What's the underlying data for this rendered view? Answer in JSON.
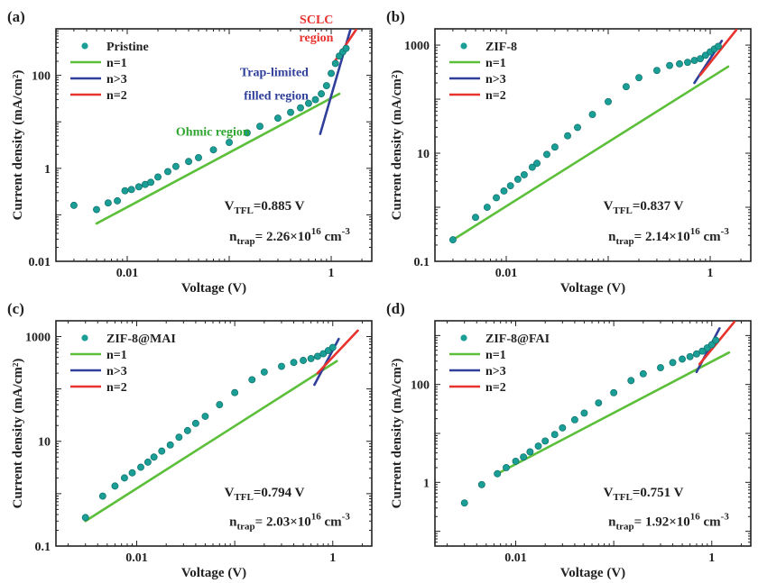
{
  "figure": {
    "panel_count": 4
  },
  "chart_data": [
    {
      "type": "scatter",
      "panel": "(a)",
      "xlabel": "Voltage (V)",
      "ylabel": "Current density (mA/cm²)",
      "xscale": "log",
      "yscale": "log",
      "xlim": [
        0.002,
        2.5
      ],
      "ylim": [
        0.01,
        1000
      ],
      "xticks": [
        {
          "v": 0.01,
          "label": "0.01"
        },
        {
          "v": 1,
          "label": "1"
        }
      ],
      "yticks": [
        {
          "v": 0.01,
          "label": "0.01"
        },
        {
          "v": 1,
          "label": "1"
        },
        {
          "v": 100,
          "label": "100"
        }
      ],
      "legend_position": "top-left",
      "series": [
        {
          "name": "Pristine",
          "kind": "points",
          "color": "#1a9e96",
          "x": [
            0.003,
            0.005,
            0.0065,
            0.008,
            0.0095,
            0.011,
            0.013,
            0.015,
            0.017,
            0.02,
            0.025,
            0.03,
            0.04,
            0.05,
            0.07,
            0.1,
            0.15,
            0.2,
            0.3,
            0.4,
            0.5,
            0.6,
            0.7,
            0.8,
            0.9,
            1.0,
            1.1,
            1.2,
            1.3,
            1.4
          ],
          "y": [
            0.16,
            0.13,
            0.18,
            0.2,
            0.33,
            0.35,
            0.4,
            0.45,
            0.5,
            0.65,
            0.85,
            1.1,
            1.4,
            1.7,
            2.5,
            3.6,
            5.8,
            8,
            12,
            16,
            20,
            25,
            30,
            40,
            60,
            110,
            180,
            260,
            320,
            380
          ]
        },
        {
          "name": "n=1",
          "kind": "line",
          "color": "#5cbf3a",
          "x": [
            0.005,
            1.2
          ],
          "y": [
            0.065,
            40
          ]
        },
        {
          "name": "n>3",
          "kind": "line",
          "color": "#2f3f9a",
          "x": [
            0.78,
            1.55
          ],
          "y": [
            5.5,
            1500
          ]
        },
        {
          "name": "n=2",
          "kind": "line",
          "color": "#e8322e",
          "x": [
            1.05,
            1.75
          ],
          "y": [
            180,
            950
          ]
        }
      ],
      "annotations": [
        {
          "text": "Ohmic region",
          "color": "#30a530",
          "x": 0.03,
          "y": 5
        },
        {
          "text": "Trap-limited",
          "color": "#2f3f9a",
          "x": 0.6,
          "y": 30,
          "anchor": "end",
          "dy": -26
        },
        {
          "text": "filled region",
          "color": "#2f3f9a",
          "x": 0.6,
          "y": 30,
          "anchor": "end",
          "dy": 0
        },
        {
          "text": "SCLC",
          "color": "#e8322e",
          "x": 1.05,
          "y": 700,
          "anchor": "end",
          "dy": -14
        },
        {
          "text": "region",
          "color": "#e8322e",
          "x": 1.05,
          "y": 700,
          "anchor": "end",
          "dy": 6
        }
      ],
      "vtfl_label": "V",
      "vtfl_sub": "TFL",
      "vtfl_value": "=0.885 V",
      "ntrap_label": "n",
      "ntrap_sub": "trap",
      "ntrap_mid": "= 2.26×10",
      "ntrap_exp": "16",
      "ntrap_unit": " cm",
      "ntrap_unit_exp": "-3"
    },
    {
      "type": "scatter",
      "panel": "(b)",
      "xlabel": "Voltage (V)",
      "ylabel": "Current density (mA/cm²)",
      "xscale": "log",
      "yscale": "log",
      "xlim": [
        0.002,
        2.5
      ],
      "ylim": [
        0.1,
        2000
      ],
      "xticks": [
        {
          "v": 0.01,
          "label": "0.01"
        },
        {
          "v": 1,
          "label": "1"
        }
      ],
      "yticks": [
        {
          "v": 0.1,
          "label": "0.1"
        },
        {
          "v": 10,
          "label": "10"
        },
        {
          "v": 1000,
          "label": "1000"
        }
      ],
      "legend_position": "top-left",
      "series": [
        {
          "name": "ZIF-8",
          "kind": "points",
          "color": "#1a9e96",
          "x": [
            0.003,
            0.005,
            0.0065,
            0.008,
            0.0095,
            0.011,
            0.013,
            0.015,
            0.018,
            0.02,
            0.025,
            0.03,
            0.04,
            0.05,
            0.07,
            0.1,
            0.15,
            0.2,
            0.3,
            0.4,
            0.5,
            0.6,
            0.7,
            0.8,
            0.9,
            1.0,
            1.1,
            1.2
          ],
          "y": [
            0.25,
            0.65,
            1.0,
            1.5,
            2.0,
            2.5,
            3.3,
            4.0,
            5.5,
            6.5,
            9.5,
            13,
            21,
            30,
            52,
            90,
            170,
            250,
            340,
            420,
            450,
            480,
            520,
            560,
            650,
            750,
            850,
            950
          ]
        },
        {
          "name": "n=1",
          "kind": "line",
          "color": "#5cbf3a",
          "x": [
            0.003,
            1.5
          ],
          "y": [
            0.25,
            400
          ]
        },
        {
          "name": "n>3",
          "kind": "line",
          "color": "#2f3f9a",
          "x": [
            0.7,
            1.3
          ],
          "y": [
            200,
            1200
          ]
        },
        {
          "name": "n=2",
          "kind": "line",
          "color": "#e8322e",
          "x": [
            0.8,
            1.8
          ],
          "y": [
            280,
            1900
          ]
        }
      ],
      "annotations": [],
      "vtfl_label": "V",
      "vtfl_sub": "TFL",
      "vtfl_value": "=0.837 V",
      "ntrap_label": "n",
      "ntrap_sub": "trap",
      "ntrap_mid": "= 2.14×10",
      "ntrap_exp": "16",
      "ntrap_unit": " cm",
      "ntrap_unit_exp": "-3"
    },
    {
      "type": "scatter",
      "panel": "(c)",
      "xlabel": "Voltage (V)",
      "ylabel": "Current density (mA/cm²)",
      "xscale": "log",
      "yscale": "log",
      "xlim": [
        0.0015,
        2.5
      ],
      "ylim": [
        0.1,
        2000
      ],
      "xticks": [
        {
          "v": 0.01,
          "label": "0.01"
        },
        {
          "v": 1,
          "label": "1"
        }
      ],
      "yticks": [
        {
          "v": 0.1,
          "label": "0.1"
        },
        {
          "v": 10,
          "label": "10"
        },
        {
          "v": 1000,
          "label": "1000"
        }
      ],
      "legend_position": "top-left",
      "series": [
        {
          "name": "ZIF-8@MAI",
          "kind": "points",
          "color": "#1a9e96",
          "x": [
            0.003,
            0.0045,
            0.006,
            0.0075,
            0.009,
            0.011,
            0.013,
            0.015,
            0.018,
            0.022,
            0.027,
            0.033,
            0.04,
            0.05,
            0.07,
            0.1,
            0.15,
            0.2,
            0.3,
            0.4,
            0.5,
            0.6,
            0.7,
            0.8,
            0.9,
            1.0
          ],
          "y": [
            0.35,
            0.9,
            1.4,
            2.0,
            2.5,
            3.2,
            4.0,
            5.0,
            6.5,
            8.5,
            12,
            16,
            22,
            30,
            50,
            85,
            150,
            210,
            270,
            320,
            350,
            380,
            420,
            470,
            540,
            620
          ]
        },
        {
          "name": "n=1",
          "kind": "line",
          "color": "#5cbf3a",
          "x": [
            0.003,
            1.1
          ],
          "y": [
            0.3,
            340
          ]
        },
        {
          "name": "n>3",
          "kind": "line",
          "color": "#2f3f9a",
          "x": [
            0.65,
            1.15
          ],
          "y": [
            120,
            900
          ]
        },
        {
          "name": "n=2",
          "kind": "line",
          "color": "#e8322e",
          "x": [
            0.7,
            1.8
          ],
          "y": [
            200,
            1300
          ]
        }
      ],
      "annotations": [],
      "vtfl_label": "V",
      "vtfl_sub": "TFL",
      "vtfl_value": "=0.794 V",
      "ntrap_label": "n",
      "ntrap_sub": "trap",
      "ntrap_mid": "= 2.03×10",
      "ntrap_exp": "16",
      "ntrap_unit": " cm",
      "ntrap_unit_exp": "-3"
    },
    {
      "type": "scatter",
      "panel": "(d)",
      "xlabel": "Voltage (V)",
      "ylabel": "Current density (mA/cm²)",
      "xscale": "log",
      "yscale": "log",
      "xlim": [
        0.0015,
        2.5
      ],
      "ylim": [
        0.05,
        2000
      ],
      "xticks": [
        {
          "v": 0.01,
          "label": "0.01"
        },
        {
          "v": 1,
          "label": "1"
        }
      ],
      "yticks": [
        {
          "v": 1,
          "label": "1"
        },
        {
          "v": 100,
          "label": "100"
        }
      ],
      "legend_position": "top-left",
      "series": [
        {
          "name": "ZIF-8@FAI",
          "kind": "points",
          "color": "#1a9e96",
          "x": [
            0.003,
            0.0045,
            0.0065,
            0.008,
            0.01,
            0.012,
            0.014,
            0.017,
            0.02,
            0.025,
            0.03,
            0.04,
            0.05,
            0.07,
            0.1,
            0.15,
            0.2,
            0.3,
            0.4,
            0.5,
            0.6,
            0.7,
            0.8,
            0.9,
            1.0,
            1.1
          ],
          "y": [
            0.38,
            0.9,
            1.5,
            2.0,
            2.7,
            3.3,
            4.2,
            5.5,
            7.0,
            9.5,
            13,
            19,
            26,
            42,
            68,
            120,
            165,
            220,
            280,
            330,
            370,
            420,
            480,
            560,
            650,
            800
          ]
        },
        {
          "name": "n=1",
          "kind": "line",
          "color": "#5cbf3a",
          "x": [
            0.0065,
            1.5
          ],
          "y": [
            1.5,
            450
          ]
        },
        {
          "name": "n>3",
          "kind": "line",
          "color": "#2f3f9a",
          "x": [
            0.7,
            1.2
          ],
          "y": [
            180,
            1400
          ]
        },
        {
          "name": "n=2",
          "kind": "line",
          "color": "#e8322e",
          "x": [
            0.75,
            1.7
          ],
          "y": [
            260,
            1900
          ]
        }
      ],
      "annotations": [],
      "vtfl_label": "V",
      "vtfl_sub": "TFL",
      "vtfl_value": "=0.751 V",
      "ntrap_label": "n",
      "ntrap_sub": "trap",
      "ntrap_mid": "= 1.92×10",
      "ntrap_exp": "16",
      "ntrap_unit": " cm",
      "ntrap_unit_exp": "-3"
    }
  ]
}
